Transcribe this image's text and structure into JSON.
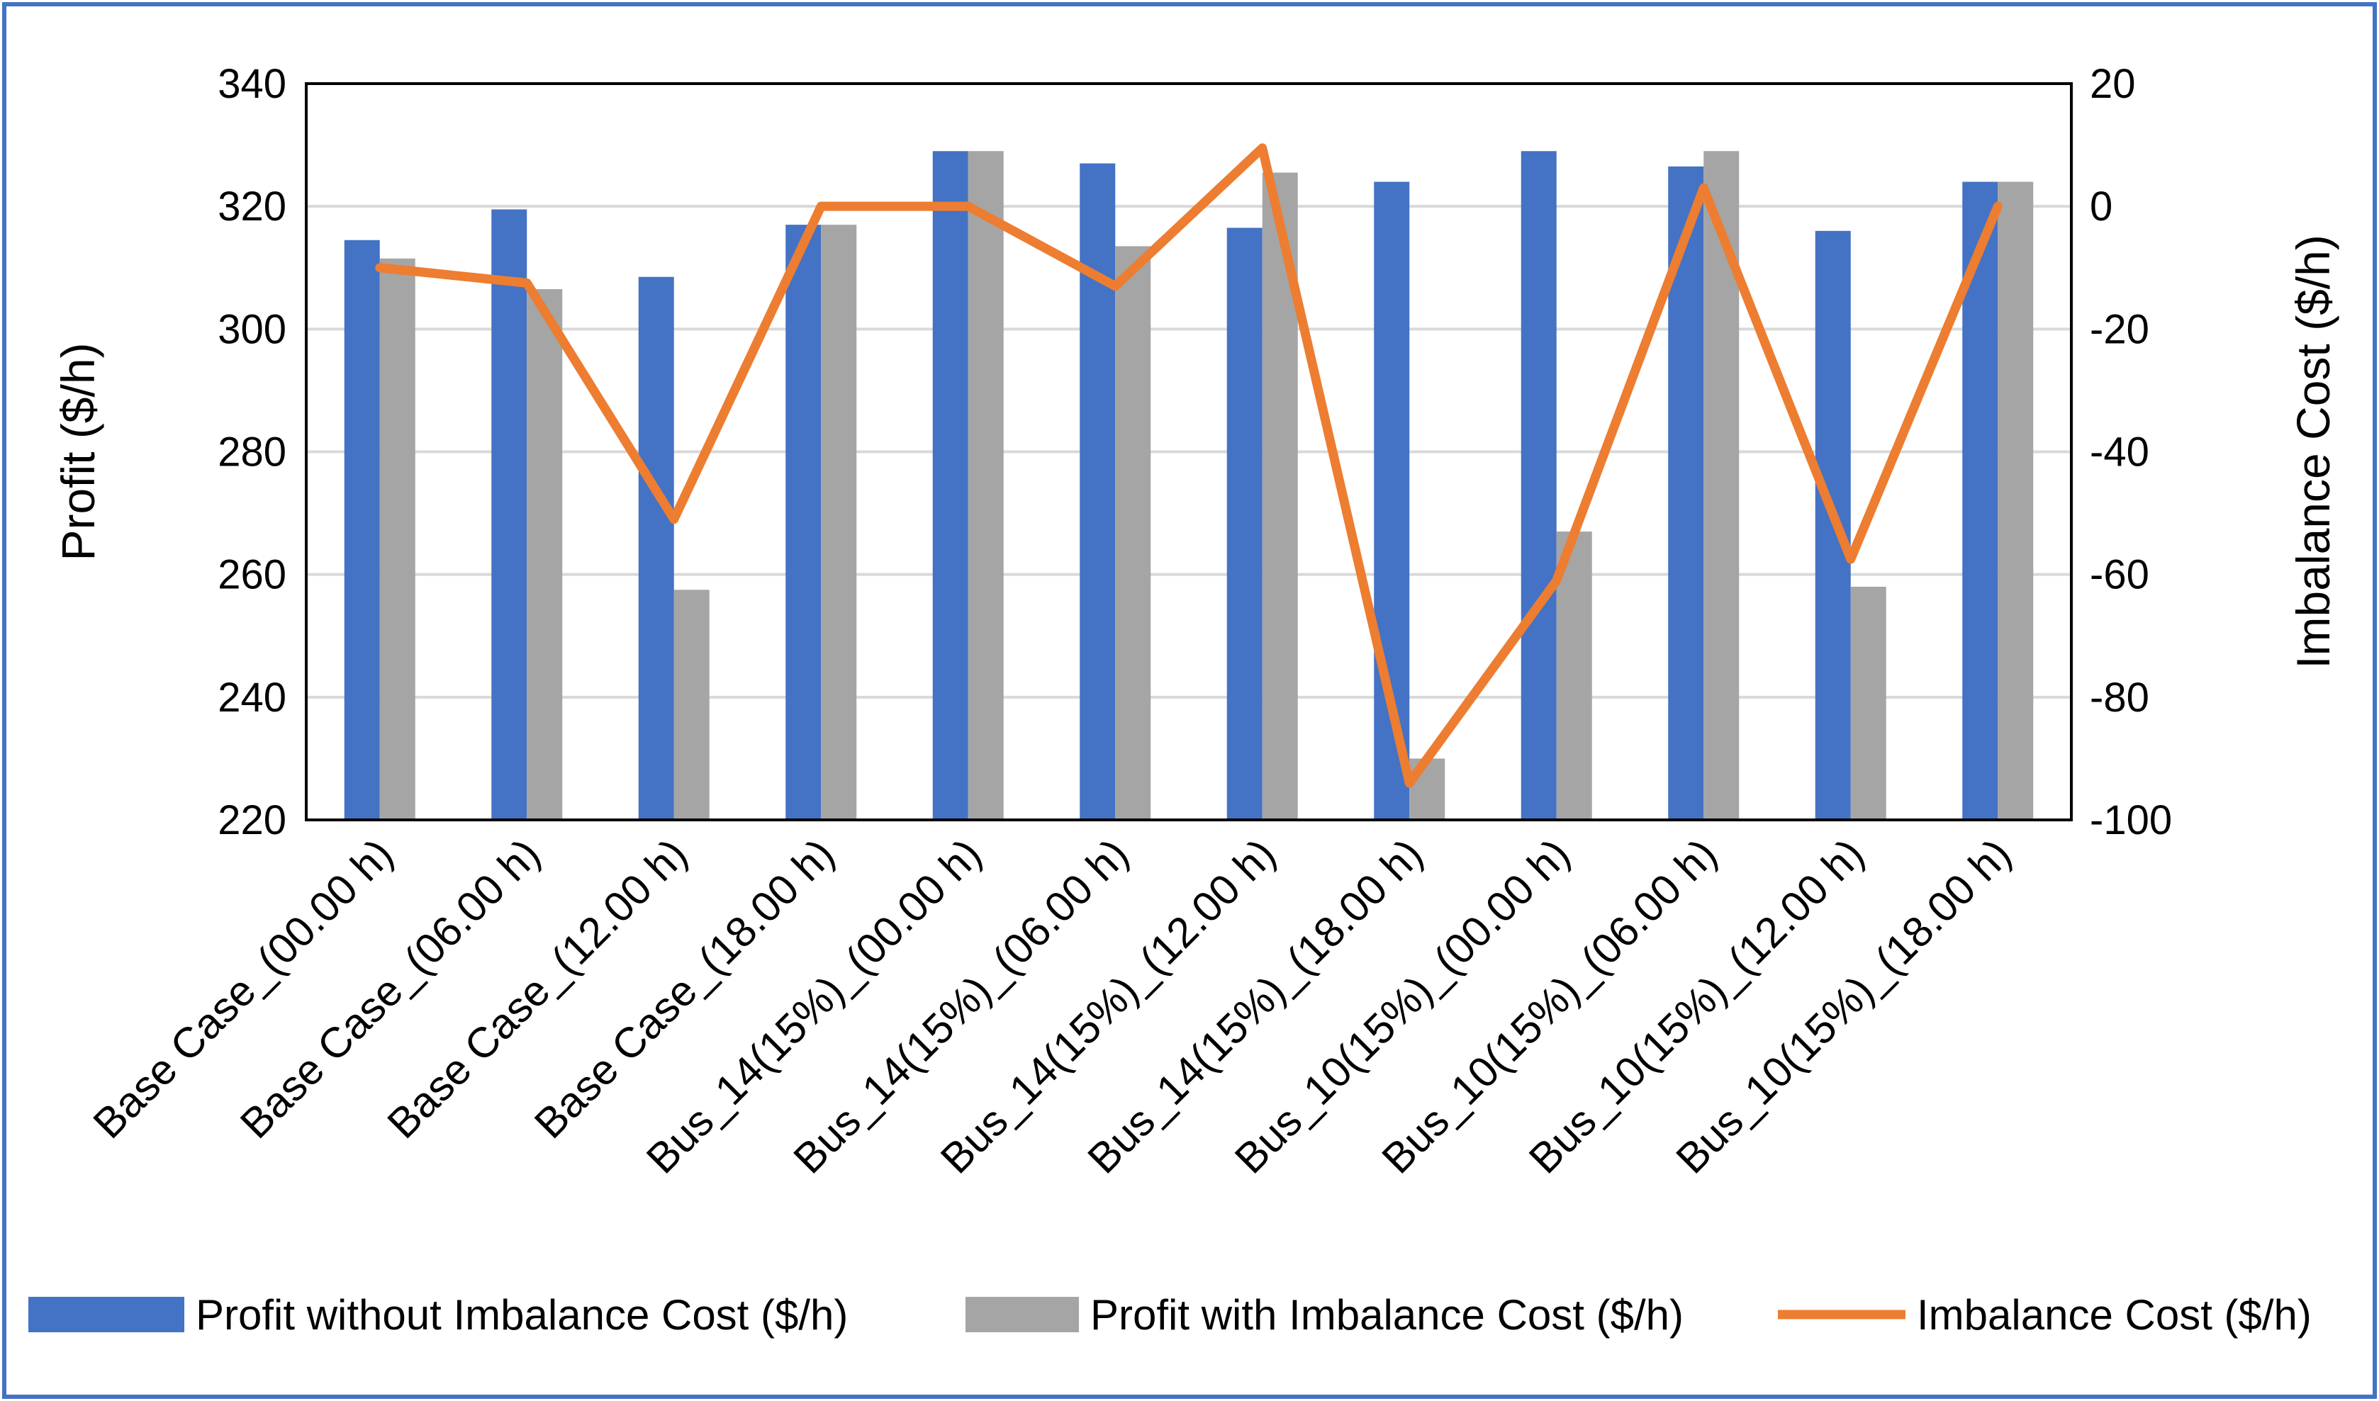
{
  "chart_data": {
    "type": "bar",
    "categories": [
      "Base Case_(00.00 h)",
      "Base Case_(06.00 h)",
      "Base Case_(12.00 h)",
      "Base Case_(18.00 h)",
      "Bus_14(15%)_(00.00 h)",
      "Bus_14(15%)_(06.00 h)",
      "Bus_14(15%)_(12.00 h)",
      "Bus_14(15%)_(18.00 h)",
      "Bus_10(15%)_(00.00 h)",
      "Bus_10(15%)_(06.00 h)",
      "Bus_10(15%)_(12.00 h)",
      "Bus_10(15%)_(18.00 h)"
    ],
    "series": [
      {
        "name": "Profit without Imbalance Cost ($/h)",
        "type": "bar",
        "axis": "left",
        "color": "#4472C4",
        "values": [
          314.5,
          319.5,
          308.5,
          317,
          329,
          327,
          316.5,
          324,
          329,
          326.5,
          316,
          324
        ]
      },
      {
        "name": "Profit with Imbalance Cost ($/h)",
        "type": "bar",
        "axis": "left",
        "color": "#A5A5A5",
        "values": [
          311.5,
          306.5,
          257.5,
          317,
          329,
          313.5,
          325.5,
          230,
          267,
          329,
          258,
          324
        ]
      },
      {
        "name": "Imbalance Cost ($/h)",
        "type": "line",
        "axis": "right",
        "color": "#ED7D31",
        "values": [
          -10,
          -12.5,
          -51,
          0,
          0,
          -13,
          9.5,
          -94,
          -61,
          3,
          -57.5,
          0
        ]
      }
    ],
    "ylabel": "Profit ($/h)",
    "y2label": "Imbalance Cost ($/h)",
    "ylim": [
      220,
      340
    ],
    "y2lim": [
      -100,
      20
    ],
    "yticks": [
      220,
      240,
      260,
      280,
      300,
      320,
      340
    ],
    "y2ticks": [
      -100,
      -80,
      -60,
      -40,
      -20,
      0,
      20
    ],
    "grid": true,
    "legend_position": "bottom",
    "frame_color": "#4472C4"
  }
}
